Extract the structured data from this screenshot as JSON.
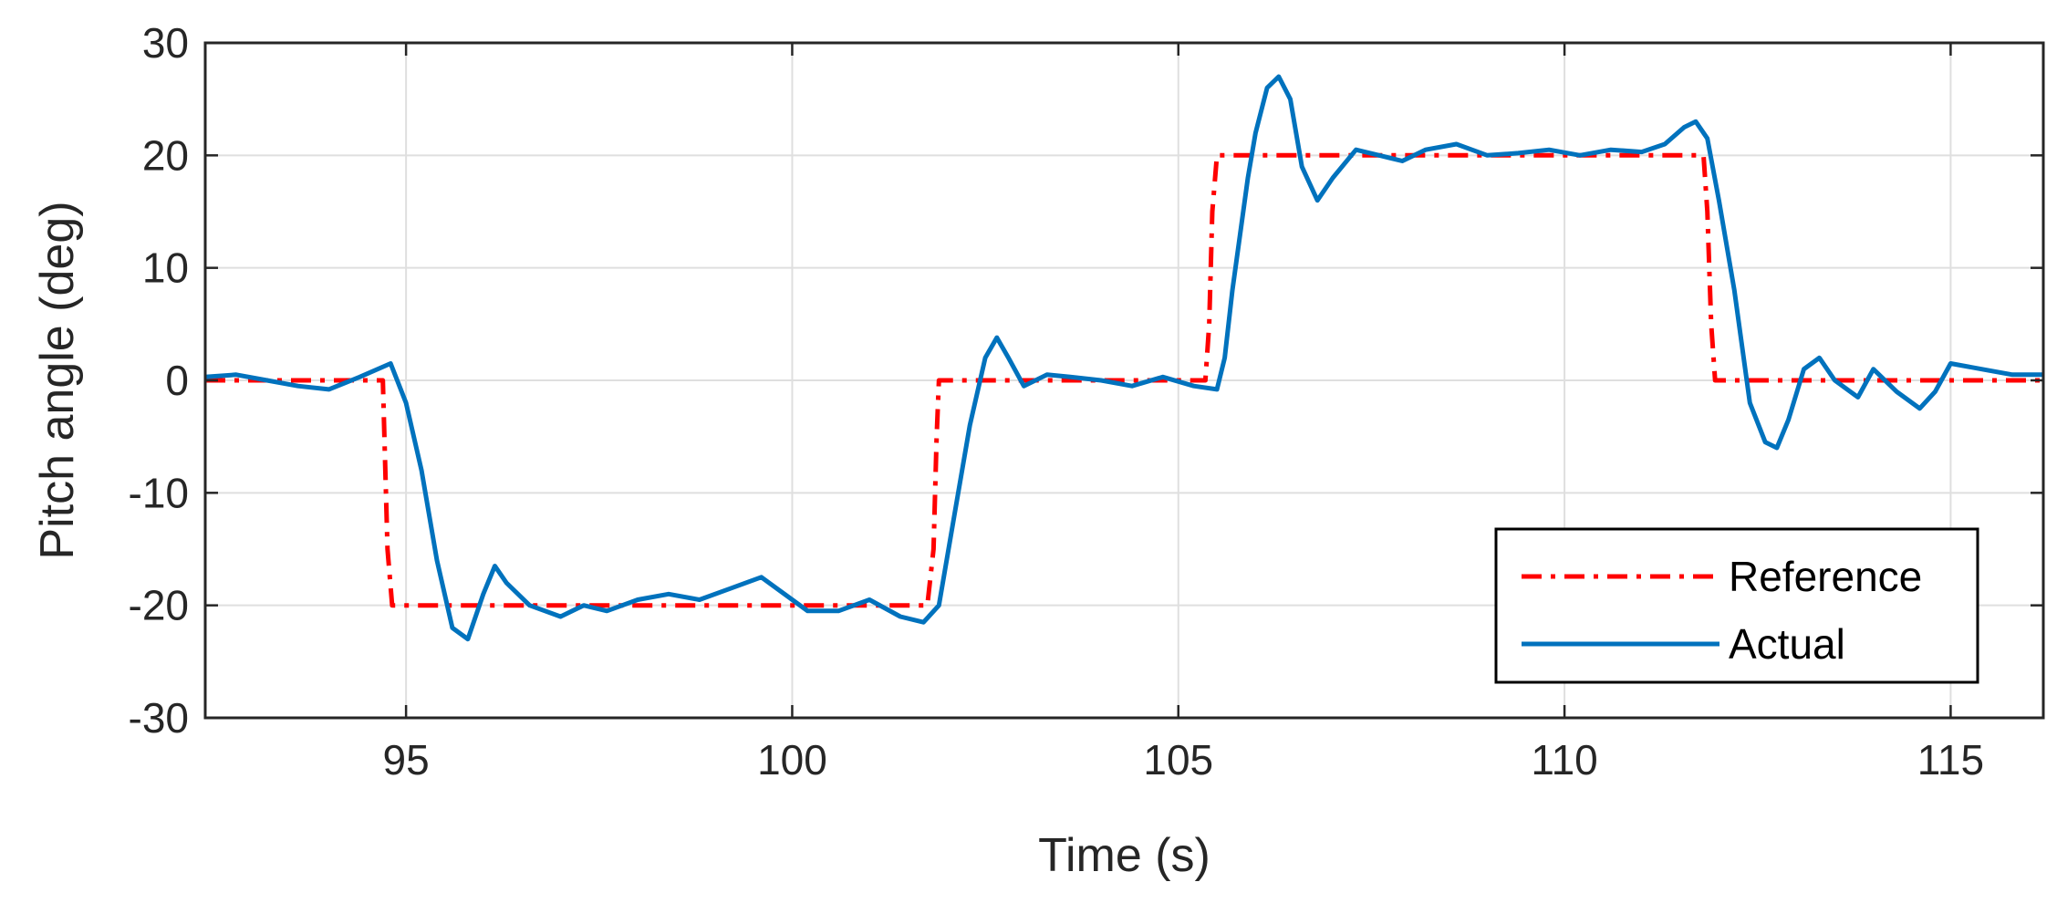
{
  "chart_data": {
    "type": "line",
    "title": "",
    "xlabel": "Time (s)",
    "ylabel": "Pitch angle (deg)",
    "xlim": [
      92.4,
      116.2
    ],
    "ylim": [
      -30,
      30
    ],
    "x_ticks": [
      95,
      100,
      105,
      110,
      115
    ],
    "x_tick_labels": [
      "95",
      "100",
      "105",
      "110",
      "115"
    ],
    "y_ticks": [
      30,
      20,
      10,
      0,
      -10,
      -20,
      -30
    ],
    "y_tick_labels": [
      "30",
      "20",
      "10",
      "0",
      "-10",
      "-20",
      "-30"
    ],
    "grid": true,
    "legend_position": "bottom-right",
    "series": [
      {
        "name": "Reference",
        "color": "#ff0000",
        "style": "dash-dot",
        "points": [
          [
            92.4,
            0
          ],
          [
            94.7,
            0
          ],
          [
            94.72,
            -5
          ],
          [
            94.76,
            -15
          ],
          [
            94.82,
            -20
          ],
          [
            101.75,
            -20
          ],
          [
            101.83,
            -15
          ],
          [
            101.87,
            -5
          ],
          [
            101.9,
            0
          ],
          [
            105.35,
            0
          ],
          [
            105.4,
            5
          ],
          [
            105.44,
            15
          ],
          [
            105.5,
            20
          ],
          [
            111.8,
            20
          ],
          [
            111.85,
            15
          ],
          [
            111.9,
            5
          ],
          [
            111.95,
            0
          ],
          [
            116.2,
            0
          ]
        ]
      },
      {
        "name": "Actual",
        "color": "#0072bd",
        "style": "solid",
        "points": [
          [
            92.4,
            0.3
          ],
          [
            92.8,
            0.5
          ],
          [
            93.2,
            0
          ],
          [
            93.6,
            -0.5
          ],
          [
            94.0,
            -0.8
          ],
          [
            94.4,
            0.3
          ],
          [
            94.8,
            1.5
          ],
          [
            95.0,
            -2
          ],
          [
            95.2,
            -8
          ],
          [
            95.4,
            -16
          ],
          [
            95.6,
            -22
          ],
          [
            95.8,
            -23
          ],
          [
            96.0,
            -19
          ],
          [
            96.15,
            -16.5
          ],
          [
            96.3,
            -18
          ],
          [
            96.6,
            -20
          ],
          [
            97.0,
            -21
          ],
          [
            97.3,
            -20
          ],
          [
            97.6,
            -20.5
          ],
          [
            98.0,
            -19.5
          ],
          [
            98.4,
            -19
          ],
          [
            98.8,
            -19.5
          ],
          [
            99.2,
            -18.5
          ],
          [
            99.6,
            -17.5
          ],
          [
            99.9,
            -19
          ],
          [
            100.2,
            -20.5
          ],
          [
            100.6,
            -20.5
          ],
          [
            101.0,
            -19.5
          ],
          [
            101.4,
            -21
          ],
          [
            101.7,
            -21.5
          ],
          [
            101.9,
            -20
          ],
          [
            102.1,
            -12
          ],
          [
            102.3,
            -4
          ],
          [
            102.5,
            2
          ],
          [
            102.65,
            3.8
          ],
          [
            102.8,
            2
          ],
          [
            103.0,
            -0.5
          ],
          [
            103.3,
            0.5
          ],
          [
            103.6,
            0.3
          ],
          [
            104.0,
            0
          ],
          [
            104.4,
            -0.5
          ],
          [
            104.8,
            0.3
          ],
          [
            105.2,
            -0.5
          ],
          [
            105.5,
            -0.8
          ],
          [
            105.6,
            2
          ],
          [
            105.7,
            8
          ],
          [
            105.8,
            13
          ],
          [
            105.9,
            18
          ],
          [
            106.0,
            22
          ],
          [
            106.15,
            26
          ],
          [
            106.3,
            27
          ],
          [
            106.45,
            25
          ],
          [
            106.6,
            19
          ],
          [
            106.8,
            16
          ],
          [
            107.0,
            18
          ],
          [
            107.3,
            20.5
          ],
          [
            107.6,
            20
          ],
          [
            107.9,
            19.5
          ],
          [
            108.2,
            20.5
          ],
          [
            108.6,
            21
          ],
          [
            109.0,
            20
          ],
          [
            109.4,
            20.2
          ],
          [
            109.8,
            20.5
          ],
          [
            110.2,
            20
          ],
          [
            110.6,
            20.5
          ],
          [
            111.0,
            20.3
          ],
          [
            111.3,
            21
          ],
          [
            111.55,
            22.5
          ],
          [
            111.7,
            23
          ],
          [
            111.85,
            21.5
          ],
          [
            112.0,
            16
          ],
          [
            112.2,
            8
          ],
          [
            112.4,
            -2
          ],
          [
            112.6,
            -5.5
          ],
          [
            112.75,
            -6
          ],
          [
            112.9,
            -3.5
          ],
          [
            113.1,
            1
          ],
          [
            113.3,
            2
          ],
          [
            113.5,
            0
          ],
          [
            113.8,
            -1.5
          ],
          [
            114.0,
            1
          ],
          [
            114.3,
            -1
          ],
          [
            114.6,
            -2.5
          ],
          [
            114.8,
            -1
          ],
          [
            115.0,
            1.5
          ],
          [
            115.4,
            1
          ],
          [
            115.8,
            0.5
          ],
          [
            116.2,
            0.5
          ]
        ]
      }
    ]
  }
}
